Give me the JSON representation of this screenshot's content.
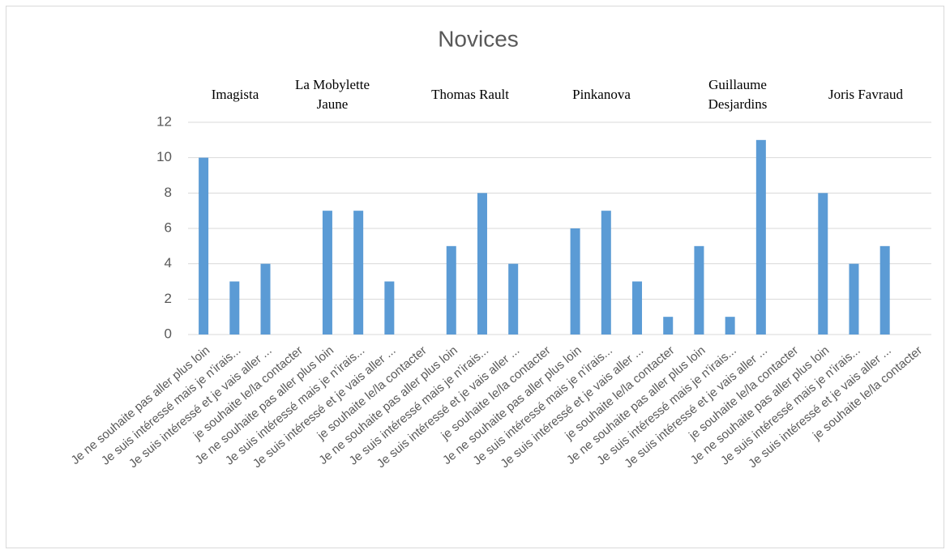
{
  "chart_data": {
    "type": "bar",
    "title": "Novices",
    "annotations": [
      "Imagista",
      "La Mobylette Jaune",
      "Thomas Rault",
      "Pinkanova",
      "Guillaume Desjardins",
      "Joris Favraud"
    ],
    "categories": [
      "Je ne souhaite pas aller plus loin",
      "Je suis intéressé mais je n'irais...",
      "Je suis intéressé et je vais aller ...",
      "je souhaite le/la contacter",
      "Je ne souhaite pas aller plus loin",
      "Je suis intéressé mais je n'irais...",
      "Je suis intéressé et je vais aller ...",
      "je souhaite le/la contacter",
      "Je ne souhaite pas aller plus loin",
      "Je suis intéressé mais je n'irais...",
      "Je suis intéressé et je vais aller ...",
      "je souhaite le/la contacter",
      "Je ne souhaite pas aller plus loin",
      "Je suis intéressé mais je n'irais...",
      "Je suis intéressé et je vais aller ...",
      "je souhaite le/la contacter",
      "Je ne souhaite pas aller plus loin",
      "Je suis intéressé mais je n'irais...",
      "Je suis intéressé et je vais aller ...",
      "je souhaite le/la contacter",
      "Je ne souhaite pas aller plus loin",
      "Je suis intéressé mais je n'irais...",
      "Je suis intéressé et je vais aller ...",
      "je souhaite le/la contacter"
    ],
    "values": [
      10,
      3,
      4,
      0,
      7,
      7,
      3,
      0,
      5,
      8,
      4,
      0,
      6,
      7,
      3,
      1,
      5,
      1,
      11,
      0,
      8,
      4,
      5,
      0
    ],
    "color": "#5b9bd5",
    "ylim": [
      0,
      12
    ],
    "yticks": [
      0,
      2,
      4,
      6,
      8,
      10,
      12
    ],
    "grid": true
  }
}
